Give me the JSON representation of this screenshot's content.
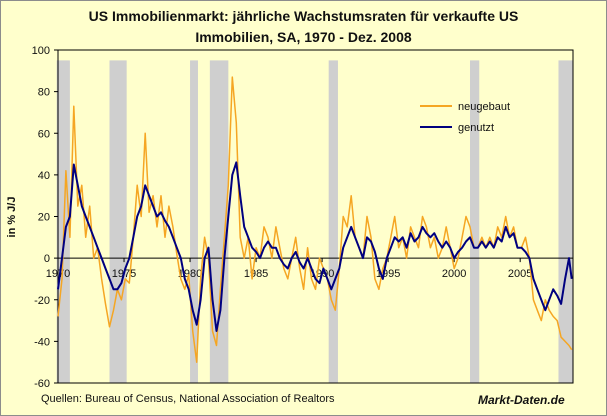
{
  "chart_data": {
    "type": "line",
    "title_line1": "US Immobilienmarkt: jährliche Wachstumsraten für verkaufte US",
    "title_line2": "Immobilien, SA, 1970 - Dez. 2008",
    "ylabel": "in % J/J",
    "xlabel": "",
    "xlim": [
      1970,
      2009
    ],
    "ylim": [
      -60,
      100
    ],
    "yticks": [
      -60,
      -40,
      -20,
      0,
      20,
      40,
      60,
      80,
      100
    ],
    "xticks": [
      "1970",
      "1975",
      "1980",
      "1985",
      "1990",
      "1995",
      "2000",
      "2005"
    ],
    "grid": false,
    "legend_position": "top-right",
    "recessions": [
      [
        1969.9,
        1970.9
      ],
      [
        1973.9,
        1975.2
      ],
      [
        1980.0,
        1980.6
      ],
      [
        1981.5,
        1982.9
      ],
      [
        1990.5,
        1991.2
      ],
      [
        2001.2,
        2001.9
      ],
      [
        2007.9,
        2009.0
      ]
    ],
    "series": [
      {
        "name": "neugebaut",
        "color": "#f5a623",
        "x": [
          1970.0,
          1970.3,
          1970.6,
          1970.9,
          1971.2,
          1971.5,
          1971.8,
          1972.1,
          1972.4,
          1972.7,
          1973.0,
          1973.3,
          1973.6,
          1973.9,
          1974.2,
          1974.5,
          1974.8,
          1975.1,
          1975.4,
          1975.7,
          1976.0,
          1976.3,
          1976.6,
          1976.9,
          1977.2,
          1977.5,
          1977.8,
          1978.1,
          1978.4,
          1978.7,
          1979.0,
          1979.3,
          1979.6,
          1979.9,
          1980.2,
          1980.5,
          1980.8,
          1981.1,
          1981.4,
          1981.7,
          1982.0,
          1982.3,
          1982.6,
          1982.9,
          1983.2,
          1983.5,
          1983.8,
          1984.1,
          1984.4,
          1984.7,
          1985.0,
          1985.3,
          1985.6,
          1985.9,
          1986.2,
          1986.5,
          1986.8,
          1987.1,
          1987.4,
          1987.7,
          1988.0,
          1988.3,
          1988.6,
          1988.9,
          1989.2,
          1989.5,
          1989.8,
          1990.1,
          1990.4,
          1990.7,
          1991.0,
          1991.3,
          1991.6,
          1991.9,
          1992.2,
          1992.5,
          1992.8,
          1993.1,
          1993.4,
          1993.7,
          1994.0,
          1994.3,
          1994.6,
          1994.9,
          1995.2,
          1995.5,
          1995.8,
          1996.1,
          1996.4,
          1996.7,
          1997.0,
          1997.3,
          1997.6,
          1997.9,
          1998.2,
          1998.5,
          1998.8,
          1999.1,
          1999.4,
          1999.7,
          2000.0,
          2000.3,
          2000.6,
          2000.9,
          2001.2,
          2001.5,
          2001.8,
          2002.1,
          2002.4,
          2002.7,
          2003.0,
          2003.3,
          2003.6,
          2003.9,
          2004.2,
          2004.5,
          2004.8,
          2005.1,
          2005.4,
          2005.7,
          2006.0,
          2006.3,
          2006.6,
          2006.9,
          2007.2,
          2007.5,
          2007.8,
          2008.1,
          2008.4,
          2008.7,
          2008.9
        ],
        "values": [
          -28,
          -10,
          42,
          10,
          73,
          25,
          35,
          10,
          25,
          0,
          5,
          -10,
          -22,
          -33,
          -25,
          -15,
          -20,
          -10,
          -12,
          10,
          35,
          20,
          60,
          22,
          30,
          15,
          30,
          10,
          25,
          15,
          2,
          -10,
          -15,
          -8,
          -35,
          -50,
          -10,
          10,
          0,
          -35,
          -42,
          -15,
          10,
          35,
          87,
          65,
          10,
          0,
          10,
          -10,
          5,
          0,
          15,
          10,
          0,
          15,
          5,
          -5,
          -10,
          0,
          10,
          -5,
          -15,
          5,
          -10,
          -15,
          0,
          -5,
          -10,
          -20,
          -25,
          -5,
          20,
          15,
          30,
          10,
          5,
          0,
          20,
          10,
          -10,
          -15,
          -5,
          0,
          10,
          20,
          5,
          10,
          0,
          15,
          10,
          5,
          20,
          15,
          5,
          10,
          0,
          5,
          15,
          5,
          -5,
          0,
          10,
          20,
          15,
          5,
          5,
          10,
          5,
          10,
          5,
          15,
          10,
          20,
          10,
          15,
          5,
          5,
          10,
          0,
          -20,
          -25,
          -30,
          -20,
          -25,
          -28,
          -30,
          -38,
          -40,
          -42,
          -44
        ]
      },
      {
        "name": "genutzt",
        "color": "#000080",
        "x": [
          1970.0,
          1970.3,
          1970.6,
          1970.9,
          1971.2,
          1971.5,
          1971.8,
          1972.1,
          1972.4,
          1972.7,
          1973.0,
          1973.3,
          1973.6,
          1973.9,
          1974.2,
          1974.5,
          1974.8,
          1975.1,
          1975.4,
          1975.7,
          1976.0,
          1976.3,
          1976.6,
          1976.9,
          1977.2,
          1977.5,
          1977.8,
          1978.1,
          1978.4,
          1978.7,
          1979.0,
          1979.3,
          1979.6,
          1979.9,
          1980.2,
          1980.5,
          1980.8,
          1981.1,
          1981.4,
          1981.7,
          1982.0,
          1982.3,
          1982.6,
          1982.9,
          1983.2,
          1983.5,
          1983.8,
          1984.1,
          1984.4,
          1984.7,
          1985.0,
          1985.3,
          1985.6,
          1985.9,
          1986.2,
          1986.5,
          1986.8,
          1987.1,
          1987.4,
          1987.7,
          1988.0,
          1988.3,
          1988.6,
          1988.9,
          1989.2,
          1989.5,
          1989.8,
          1990.1,
          1990.4,
          1990.7,
          1991.0,
          1991.3,
          1991.6,
          1991.9,
          1992.2,
          1992.5,
          1992.8,
          1993.1,
          1993.4,
          1993.7,
          1994.0,
          1994.3,
          1994.6,
          1994.9,
          1995.2,
          1995.5,
          1995.8,
          1996.1,
          1996.4,
          1996.7,
          1997.0,
          1997.3,
          1997.6,
          1997.9,
          1998.2,
          1998.5,
          1998.8,
          1999.1,
          1999.4,
          1999.7,
          2000.0,
          2000.3,
          2000.6,
          2000.9,
          2001.2,
          2001.5,
          2001.8,
          2002.1,
          2002.4,
          2002.7,
          2003.0,
          2003.3,
          2003.6,
          2003.9,
          2004.2,
          2004.5,
          2004.8,
          2005.1,
          2005.4,
          2005.7,
          2006.0,
          2006.3,
          2006.6,
          2006.9,
          2007.2,
          2007.5,
          2007.8,
          2008.1,
          2008.4,
          2008.7,
          2008.9
        ],
        "values": [
          -15,
          0,
          15,
          20,
          45,
          35,
          25,
          20,
          15,
          10,
          5,
          0,
          -5,
          -10,
          -15,
          -15,
          -12,
          -5,
          0,
          10,
          20,
          25,
          35,
          30,
          25,
          20,
          22,
          18,
          15,
          10,
          5,
          0,
          -10,
          -15,
          -25,
          -32,
          -20,
          0,
          5,
          -20,
          -35,
          -25,
          0,
          20,
          40,
          46,
          30,
          15,
          10,
          5,
          3,
          0,
          5,
          8,
          5,
          5,
          0,
          -3,
          -5,
          0,
          3,
          -2,
          -5,
          0,
          -5,
          -10,
          -12,
          -5,
          -10,
          -15,
          -10,
          -5,
          5,
          10,
          15,
          10,
          5,
          0,
          10,
          8,
          3,
          -5,
          -10,
          0,
          5,
          10,
          8,
          10,
          5,
          12,
          8,
          10,
          15,
          12,
          10,
          12,
          8,
          5,
          8,
          5,
          0,
          3,
          5,
          8,
          10,
          5,
          5,
          8,
          5,
          8,
          5,
          10,
          8,
          15,
          10,
          12,
          5,
          5,
          3,
          0,
          -10,
          -15,
          -20,
          -25,
          -20,
          -15,
          -18,
          -22,
          -10,
          0,
          -10
        ]
      }
    ]
  },
  "footer": {
    "source": "Quellen: Bureau of Census,  National Association of Realtors",
    "brand": "Markt-Daten.de"
  }
}
